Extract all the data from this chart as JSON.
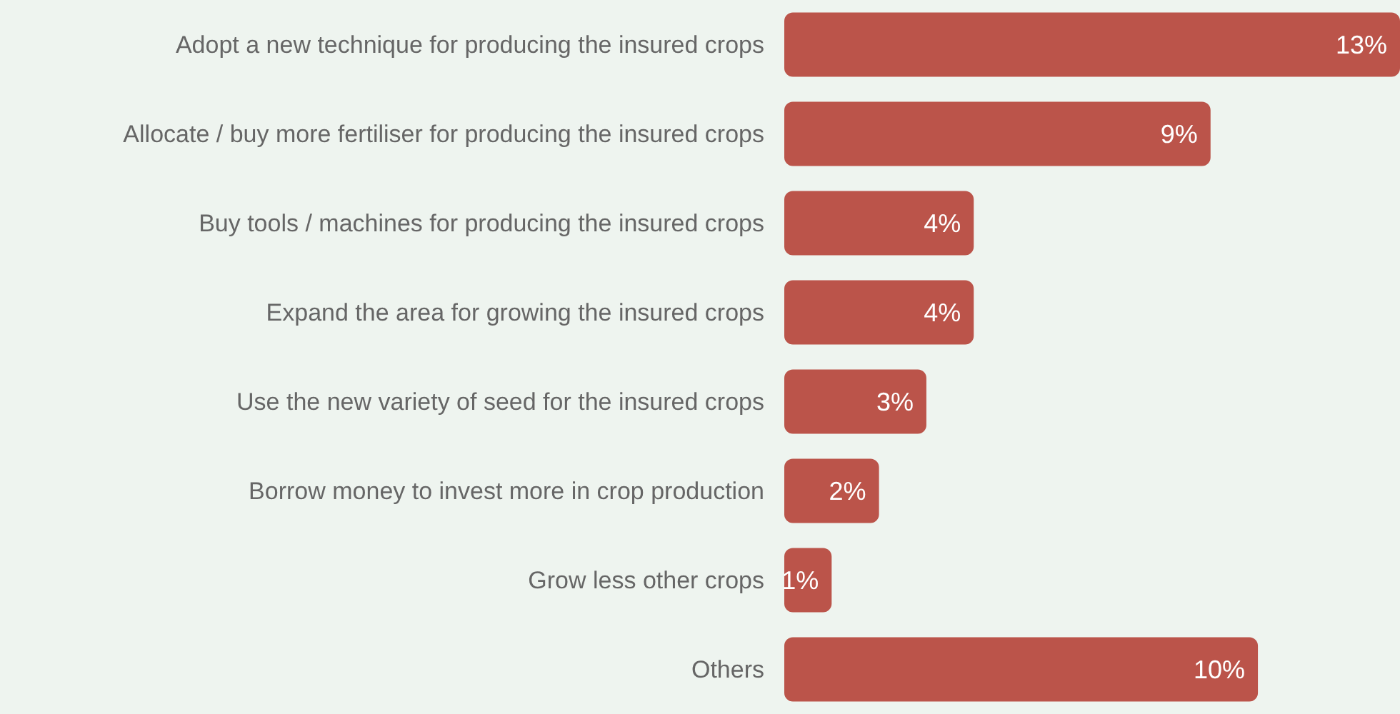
{
  "chart_data": {
    "type": "bar",
    "orientation": "horizontal",
    "categories": [
      "Adopt a new technique for producing the insured crops",
      "Allocate / buy more fertiliser for producing the insured crops",
      "Buy tools / machines for producing the insured crops",
      "Expand the area for growing the insured crops",
      "Use the new variety of seed for the insured crops",
      "Borrow money to invest more in crop production",
      "Grow less other crops",
      "Others"
    ],
    "values": [
      13,
      9,
      4,
      4,
      3,
      2,
      1,
      10
    ],
    "value_labels": [
      "13%",
      "9%",
      "4%",
      "4%",
      "3%",
      "2%",
      "1%",
      "10%"
    ],
    "color": "#bb544a"
  }
}
